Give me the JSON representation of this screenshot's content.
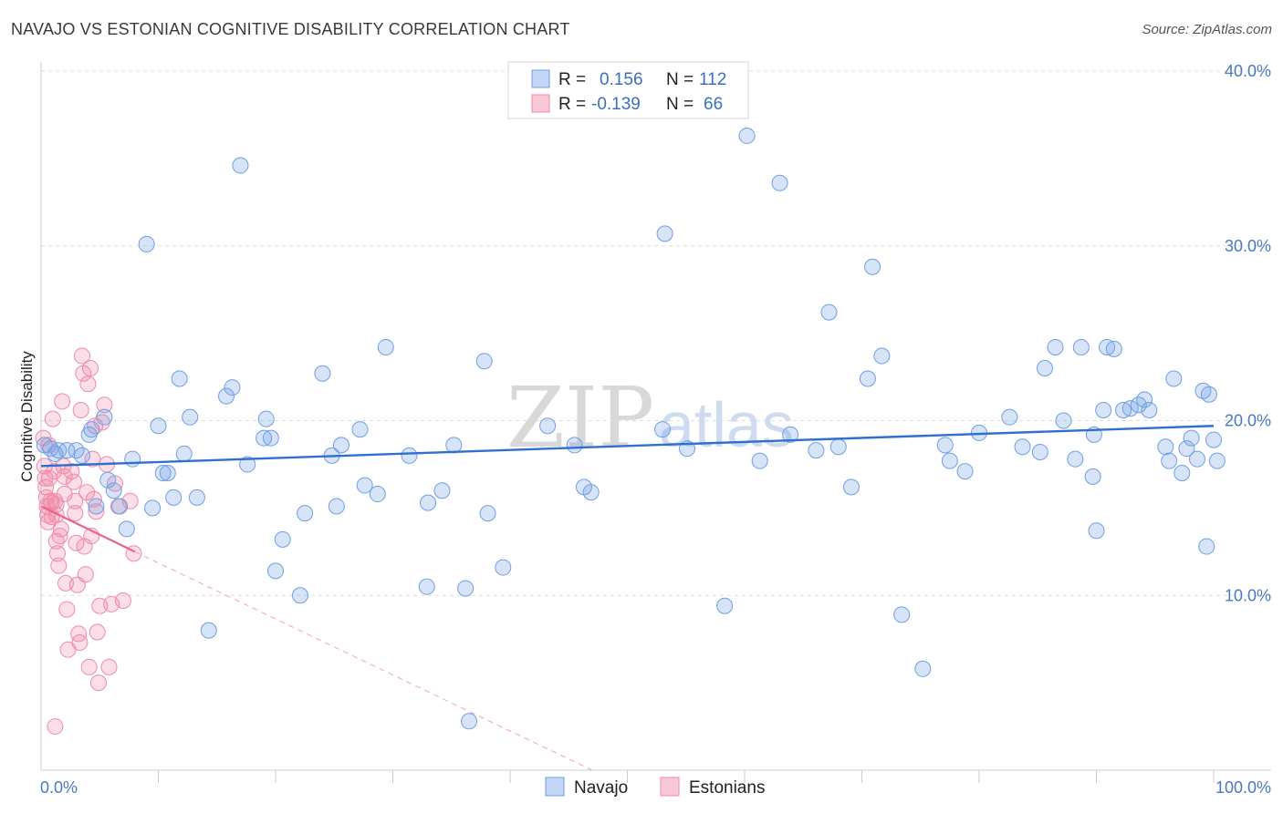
{
  "header": {
    "title": "NAVAJO VS ESTONIAN COGNITIVE DISABILITY CORRELATION CHART",
    "source": "Source: ZipAtlas.com"
  },
  "watermark": {
    "zip": "ZIP",
    "atlas": "atlas"
  },
  "legend": {
    "rows": [
      {
        "r_label": "R = ",
        "r_value": "0.156",
        "n_label": "N = ",
        "n_value": "112"
      },
      {
        "r_label": "R = ",
        "r_value": "-0.139",
        "n_label": "N = ",
        "n_value": "66"
      }
    ]
  },
  "chart_data": {
    "type": "scatter",
    "title": "NAVAJO VS ESTONIAN COGNITIVE DISABILITY CORRELATION CHART",
    "xlabel": "",
    "ylabel": "Cognitive Disability",
    "xlim": [
      0,
      100
    ],
    "ylim": [
      0,
      40
    ],
    "x_tick_labels": [
      "0.0%",
      "100.0%"
    ],
    "y_ticks": [
      10,
      20,
      30,
      40
    ],
    "y_tick_labels": [
      "10.0%",
      "20.0%",
      "30.0%",
      "40.0%"
    ],
    "grid": true,
    "legend_position": "bottom-center",
    "colors": {
      "navajo": "#6f9ee6",
      "estonians": "#f08aa8",
      "navajo_line": "#2f6fd0",
      "estonians_line": "#e8628c"
    },
    "series": [
      {
        "name": "Navajo",
        "R": 0.156,
        "N": 112,
        "trend": {
          "x": [
            0,
            100
          ],
          "y": [
            17.4,
            19.7
          ]
        },
        "points": [
          [
            0.3,
            18.6
          ],
          [
            0.8,
            18.4
          ],
          [
            1.2,
            18.1
          ],
          [
            1.5,
            18.3
          ],
          [
            2.2,
            18.3
          ],
          [
            3.0,
            18.3
          ],
          [
            3.5,
            18.0
          ],
          [
            4.1,
            19.2
          ],
          [
            4.3,
            19.5
          ],
          [
            4.7,
            15.1
          ],
          [
            5.4,
            20.2
          ],
          [
            5.7,
            16.6
          ],
          [
            6.2,
            16.0
          ],
          [
            6.7,
            15.1
          ],
          [
            7.3,
            13.8
          ],
          [
            7.8,
            17.8
          ],
          [
            9.0,
            30.1
          ],
          [
            9.5,
            15.0
          ],
          [
            10.0,
            19.7
          ],
          [
            10.4,
            17.0
          ],
          [
            10.8,
            17.0
          ],
          [
            11.3,
            15.6
          ],
          [
            11.8,
            22.4
          ],
          [
            12.2,
            18.1
          ],
          [
            12.7,
            20.2
          ],
          [
            13.3,
            15.6
          ],
          [
            14.3,
            8.0
          ],
          [
            15.8,
            21.4
          ],
          [
            16.3,
            21.9
          ],
          [
            17.0,
            34.6
          ],
          [
            17.6,
            17.5
          ],
          [
            19.0,
            19.0
          ],
          [
            19.2,
            20.1
          ],
          [
            19.6,
            19.0
          ],
          [
            20.0,
            11.4
          ],
          [
            20.6,
            13.2
          ],
          [
            22.1,
            10.0
          ],
          [
            22.5,
            14.7
          ],
          [
            24.0,
            22.7
          ],
          [
            24.8,
            18.0
          ],
          [
            25.2,
            15.1
          ],
          [
            25.6,
            18.6
          ],
          [
            27.2,
            19.5
          ],
          [
            27.6,
            16.3
          ],
          [
            28.7,
            15.8
          ],
          [
            29.4,
            24.2
          ],
          [
            31.4,
            18.0
          ],
          [
            32.9,
            10.5
          ],
          [
            33.0,
            15.3
          ],
          [
            34.2,
            16.0
          ],
          [
            35.2,
            18.6
          ],
          [
            36.2,
            10.4
          ],
          [
            36.5,
            2.8
          ],
          [
            37.8,
            23.4
          ],
          [
            38.1,
            14.7
          ],
          [
            39.4,
            11.6
          ],
          [
            43.2,
            19.7
          ],
          [
            45.5,
            18.6
          ],
          [
            46.3,
            16.2
          ],
          [
            46.9,
            15.9
          ],
          [
            53.2,
            30.7
          ],
          [
            53.0,
            19.5
          ],
          [
            55.1,
            18.4
          ],
          [
            58.3,
            9.4
          ],
          [
            60.2,
            36.3
          ],
          [
            61.3,
            17.7
          ],
          [
            63.0,
            33.6
          ],
          [
            63.9,
            19.2
          ],
          [
            66.1,
            18.3
          ],
          [
            67.2,
            26.2
          ],
          [
            68.0,
            18.5
          ],
          [
            69.1,
            16.2
          ],
          [
            70.5,
            22.4
          ],
          [
            70.9,
            28.8
          ],
          [
            71.7,
            23.7
          ],
          [
            73.4,
            8.9
          ],
          [
            75.2,
            5.8
          ],
          [
            77.1,
            18.6
          ],
          [
            77.5,
            17.7
          ],
          [
            78.8,
            17.1
          ],
          [
            80.0,
            19.3
          ],
          [
            82.6,
            20.2
          ],
          [
            83.7,
            18.5
          ],
          [
            85.2,
            18.2
          ],
          [
            85.6,
            23.0
          ],
          [
            86.5,
            24.2
          ],
          [
            87.2,
            20.0
          ],
          [
            88.2,
            17.8
          ],
          [
            88.7,
            24.2
          ],
          [
            89.7,
            16.8
          ],
          [
            89.8,
            19.2
          ],
          [
            90.0,
            13.7
          ],
          [
            90.6,
            20.6
          ],
          [
            90.9,
            24.2
          ],
          [
            91.5,
            24.1
          ],
          [
            92.3,
            20.6
          ],
          [
            92.9,
            20.7
          ],
          [
            93.6,
            20.9
          ],
          [
            94.1,
            21.2
          ],
          [
            94.5,
            20.6
          ],
          [
            95.9,
            18.5
          ],
          [
            96.2,
            17.7
          ],
          [
            96.6,
            22.4
          ],
          [
            97.3,
            17.0
          ],
          [
            97.7,
            18.4
          ],
          [
            98.1,
            19.0
          ],
          [
            98.6,
            17.8
          ],
          [
            99.1,
            21.7
          ],
          [
            99.4,
            12.8
          ],
          [
            99.6,
            21.5
          ],
          [
            100.0,
            18.9
          ],
          [
            100.3,
            17.7
          ]
        ]
      },
      {
        "name": "Estonians",
        "R": -0.139,
        "N": 66,
        "trend": {
          "x": [
            0,
            8.0
          ],
          "y": [
            15.1,
            12.5
          ]
        },
        "trend_extension": {
          "x": [
            8.0,
            47.0
          ],
          "y": [
            12.5,
            0.0
          ]
        },
        "points": [
          [
            0.2,
            19.0
          ],
          [
            0.3,
            17.4
          ],
          [
            0.35,
            16.7
          ],
          [
            0.4,
            16.2
          ],
          [
            0.45,
            15.6
          ],
          [
            0.5,
            15.1
          ],
          [
            0.55,
            14.6
          ],
          [
            0.6,
            14.2
          ],
          [
            0.7,
            16.7
          ],
          [
            0.8,
            15.4
          ],
          [
            0.9,
            15.3
          ],
          [
            0.9,
            14.5
          ],
          [
            1.0,
            20.1
          ],
          [
            1.1,
            17.1
          ],
          [
            1.2,
            15.4
          ],
          [
            1.3,
            15.2
          ],
          [
            1.3,
            14.6
          ],
          [
            1.3,
            13.1
          ],
          [
            1.4,
            12.4
          ],
          [
            1.5,
            11.7
          ],
          [
            1.6,
            13.4
          ],
          [
            1.7,
            13.8
          ],
          [
            1.8,
            21.1
          ],
          [
            1.9,
            17.4
          ],
          [
            2.0,
            16.8
          ],
          [
            2.0,
            15.8
          ],
          [
            2.1,
            10.7
          ],
          [
            2.2,
            9.2
          ],
          [
            2.3,
            6.9
          ],
          [
            2.6,
            17.1
          ],
          [
            2.8,
            16.5
          ],
          [
            2.9,
            15.4
          ],
          [
            2.9,
            14.7
          ],
          [
            3.0,
            13.0
          ],
          [
            3.1,
            10.6
          ],
          [
            3.2,
            7.8
          ],
          [
            3.3,
            7.3
          ],
          [
            3.4,
            20.6
          ],
          [
            3.5,
            23.7
          ],
          [
            3.6,
            22.7
          ],
          [
            3.7,
            12.8
          ],
          [
            3.8,
            11.2
          ],
          [
            3.9,
            15.9
          ],
          [
            4.0,
            22.1
          ],
          [
            4.1,
            5.9
          ],
          [
            4.2,
            23.0
          ],
          [
            4.3,
            13.4
          ],
          [
            4.4,
            17.8
          ],
          [
            4.5,
            15.5
          ],
          [
            4.6,
            19.7
          ],
          [
            4.7,
            14.8
          ],
          [
            4.8,
            7.9
          ],
          [
            4.9,
            5.0
          ],
          [
            5.0,
            9.4
          ],
          [
            5.2,
            19.9
          ],
          [
            5.4,
            20.9
          ],
          [
            5.6,
            17.5
          ],
          [
            5.8,
            5.9
          ],
          [
            6.0,
            9.5
          ],
          [
            6.3,
            16.4
          ],
          [
            6.6,
            15.1
          ],
          [
            7.0,
            9.7
          ],
          [
            7.6,
            15.4
          ],
          [
            7.9,
            12.4
          ],
          [
            1.2,
            2.5
          ],
          [
            0.65,
            18.6
          ]
        ]
      }
    ]
  },
  "bottom_legend": {
    "navajo": "Navajo",
    "estonians": "Estonians"
  }
}
